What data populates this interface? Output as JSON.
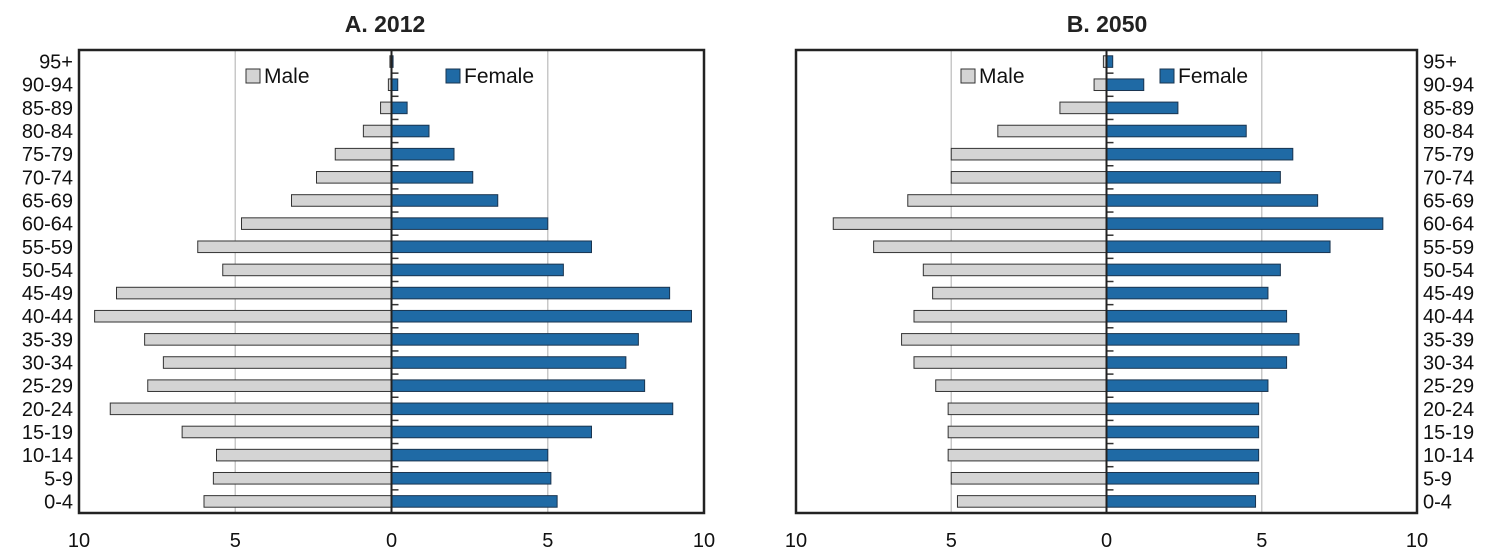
{
  "chart_data": [
    {
      "type": "bar",
      "orientation": "horizontal",
      "title": "A. 2012",
      "categories": [
        "95+",
        "90-94",
        "85-89",
        "80-84",
        "75-79",
        "70-74",
        "65-69",
        "60-64",
        "55-59",
        "50-54",
        "45-49",
        "40-44",
        "35-39",
        "30-34",
        "25-29",
        "20-24",
        "15-19",
        "10-14",
        "5-9",
        "0-4"
      ],
      "series": [
        {
          "name": "Male",
          "color": "#d4d4d4",
          "values": [
            0.05,
            0.1,
            0.35,
            0.9,
            1.8,
            2.4,
            3.2,
            4.8,
            6.2,
            5.4,
            8.8,
            9.5,
            7.9,
            7.3,
            7.8,
            9.0,
            6.7,
            5.6,
            5.7,
            6.0
          ]
        },
        {
          "name": "Female",
          "color": "#1f6aa5",
          "values": [
            0.05,
            0.2,
            0.5,
            1.2,
            2.0,
            2.6,
            3.4,
            5.0,
            6.4,
            5.5,
            8.9,
            9.6,
            7.9,
            7.5,
            8.1,
            9.0,
            6.4,
            5.0,
            5.1,
            5.3
          ]
        }
      ],
      "xticks": [
        "10",
        "5",
        "0",
        "5",
        "10"
      ],
      "xlim": [
        -10,
        10
      ],
      "grid": true,
      "legend_placement": "top"
    },
    {
      "type": "bar",
      "orientation": "horizontal",
      "title": "B. 2050",
      "categories": [
        "95+",
        "90-94",
        "85-89",
        "80-84",
        "75-79",
        "70-74",
        "65-69",
        "60-64",
        "55-59",
        "50-54",
        "45-49",
        "40-44",
        "35-39",
        "30-34",
        "25-29",
        "20-24",
        "15-19",
        "10-14",
        "5-9",
        "0-4"
      ],
      "series": [
        {
          "name": "Male",
          "color": "#d4d4d4",
          "values": [
            0.1,
            0.4,
            1.5,
            3.5,
            5.0,
            5.0,
            6.4,
            8.8,
            7.5,
            5.9,
            5.6,
            6.2,
            6.6,
            6.2,
            5.5,
            5.1,
            5.1,
            5.1,
            5.0,
            4.8
          ]
        },
        {
          "name": "Female",
          "color": "#1f6aa5",
          "values": [
            0.2,
            1.2,
            2.3,
            4.5,
            6.0,
            5.6,
            6.8,
            8.9,
            7.2,
            5.6,
            5.2,
            5.8,
            6.2,
            5.8,
            5.2,
            4.9,
            4.9,
            4.9,
            4.9,
            4.8
          ]
        }
      ],
      "xticks": [
        "10",
        "5",
        "0",
        "5",
        "10"
      ],
      "xlim": [
        -10,
        10
      ],
      "grid": true,
      "legend_placement": "top"
    }
  ]
}
